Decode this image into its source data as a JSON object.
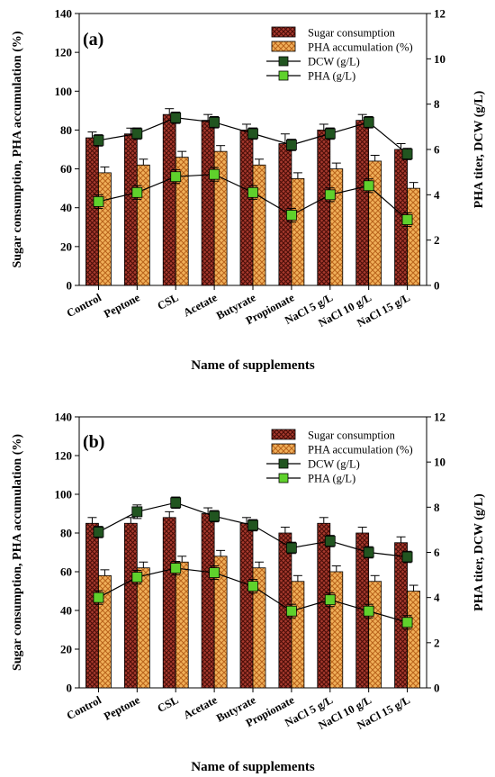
{
  "colors": {
    "sugar": "#9a2a20",
    "pha_accum": "#e49b3c",
    "dcw": "#215520",
    "pha_titer": "#5fd12c"
  },
  "chart_data": [
    {
      "type": "bar",
      "panel_label": "(a)",
      "categories": [
        "Control",
        "Peptone",
        "CSL",
        "Acetate",
        "Butyrate",
        "Propionate",
        "NaCl 5 g/L",
        "NaCl 10 g/L",
        "NaCl 15 g/L"
      ],
      "xlabel": "Name of supplements",
      "ylabel": "Sugar consumption, PHA accumulation (%)",
      "ylabel_right": "PHA titer, DCW (g/L)",
      "ylim": [
        0,
        140
      ],
      "yticks": [
        0,
        20,
        40,
        60,
        80,
        100,
        120,
        140
      ],
      "ylim_right": [
        0,
        12
      ],
      "yticks_right": [
        0,
        2,
        4,
        6,
        8,
        10,
        12
      ],
      "legend_position": "top-right",
      "series": [
        {
          "name": "Sugar consumption",
          "kind": "bar",
          "axis": "left",
          "values": [
            76,
            78,
            88,
            85,
            80,
            73,
            80,
            85,
            70
          ],
          "errors": [
            3,
            3,
            3,
            3,
            3,
            5,
            3,
            3,
            3
          ]
        },
        {
          "name": "PHA accumulation (%)",
          "kind": "bar",
          "axis": "left",
          "values": [
            58,
            62,
            66,
            69,
            62,
            55,
            60,
            64,
            50
          ],
          "errors": [
            3,
            3,
            3,
            3,
            3,
            3,
            3,
            3,
            3
          ]
        },
        {
          "name": "DCW (g/L)",
          "kind": "line",
          "axis": "right",
          "values": [
            6.4,
            6.7,
            7.4,
            7.2,
            6.7,
            6.2,
            6.7,
            7.2,
            5.8
          ],
          "errors": [
            0.25,
            0.25,
            0.25,
            0.25,
            0.25,
            0.25,
            0.25,
            0.25,
            0.25
          ]
        },
        {
          "name": "PHA (g/L)",
          "kind": "line",
          "axis": "right",
          "values": [
            3.7,
            4.1,
            4.8,
            4.9,
            4.1,
            3.1,
            4.0,
            4.4,
            2.9
          ],
          "errors": [
            0.3,
            0.3,
            0.3,
            0.3,
            0.3,
            0.3,
            0.3,
            0.3,
            0.3
          ]
        }
      ]
    },
    {
      "type": "bar",
      "panel_label": "(b)",
      "categories": [
        "Control",
        "Peptone",
        "CSL",
        "Acetate",
        "Butyrate",
        "Propionate",
        "NaCl 5 g/L",
        "NaCl 10 g/L",
        "NaCl 15 g/L"
      ],
      "xlabel": "Name of supplements",
      "ylabel": "Sugar consumption, PHA accumulation (%)",
      "ylabel_right": "PHA titer, DCW (g/L)",
      "ylim": [
        0,
        140
      ],
      "yticks": [
        0,
        20,
        40,
        60,
        80,
        100,
        120,
        140
      ],
      "ylim_right": [
        0,
        12
      ],
      "yticks_right": [
        0,
        2,
        4,
        6,
        8,
        10,
        12
      ],
      "legend_position": "top-right",
      "series": [
        {
          "name": "Sugar consumption",
          "kind": "bar",
          "axis": "left",
          "values": [
            85,
            85,
            88,
            90,
            85,
            80,
            85,
            80,
            75
          ],
          "errors": [
            3,
            3,
            3,
            3,
            3,
            3,
            3,
            3,
            3
          ]
        },
        {
          "name": "PHA accumulation (%)",
          "kind": "bar",
          "axis": "left",
          "values": [
            58,
            62,
            65,
            68,
            62,
            55,
            60,
            55,
            50
          ],
          "errors": [
            3,
            3,
            3,
            3,
            3,
            3,
            3,
            3,
            3
          ]
        },
        {
          "name": "DCW (g/L)",
          "kind": "line",
          "axis": "right",
          "values": [
            6.9,
            7.8,
            8.2,
            7.6,
            7.2,
            6.2,
            6.5,
            6.0,
            5.8
          ],
          "errors": [
            0.25,
            0.3,
            0.25,
            0.25,
            0.25,
            0.25,
            0.25,
            0.25,
            0.25
          ]
        },
        {
          "name": "PHA (g/L)",
          "kind": "line",
          "axis": "right",
          "values": [
            4.0,
            4.9,
            5.3,
            5.1,
            4.5,
            3.4,
            3.9,
            3.4,
            2.9
          ],
          "errors": [
            0.3,
            0.3,
            0.3,
            0.3,
            0.3,
            0.3,
            0.3,
            0.3,
            0.3
          ]
        }
      ]
    }
  ]
}
